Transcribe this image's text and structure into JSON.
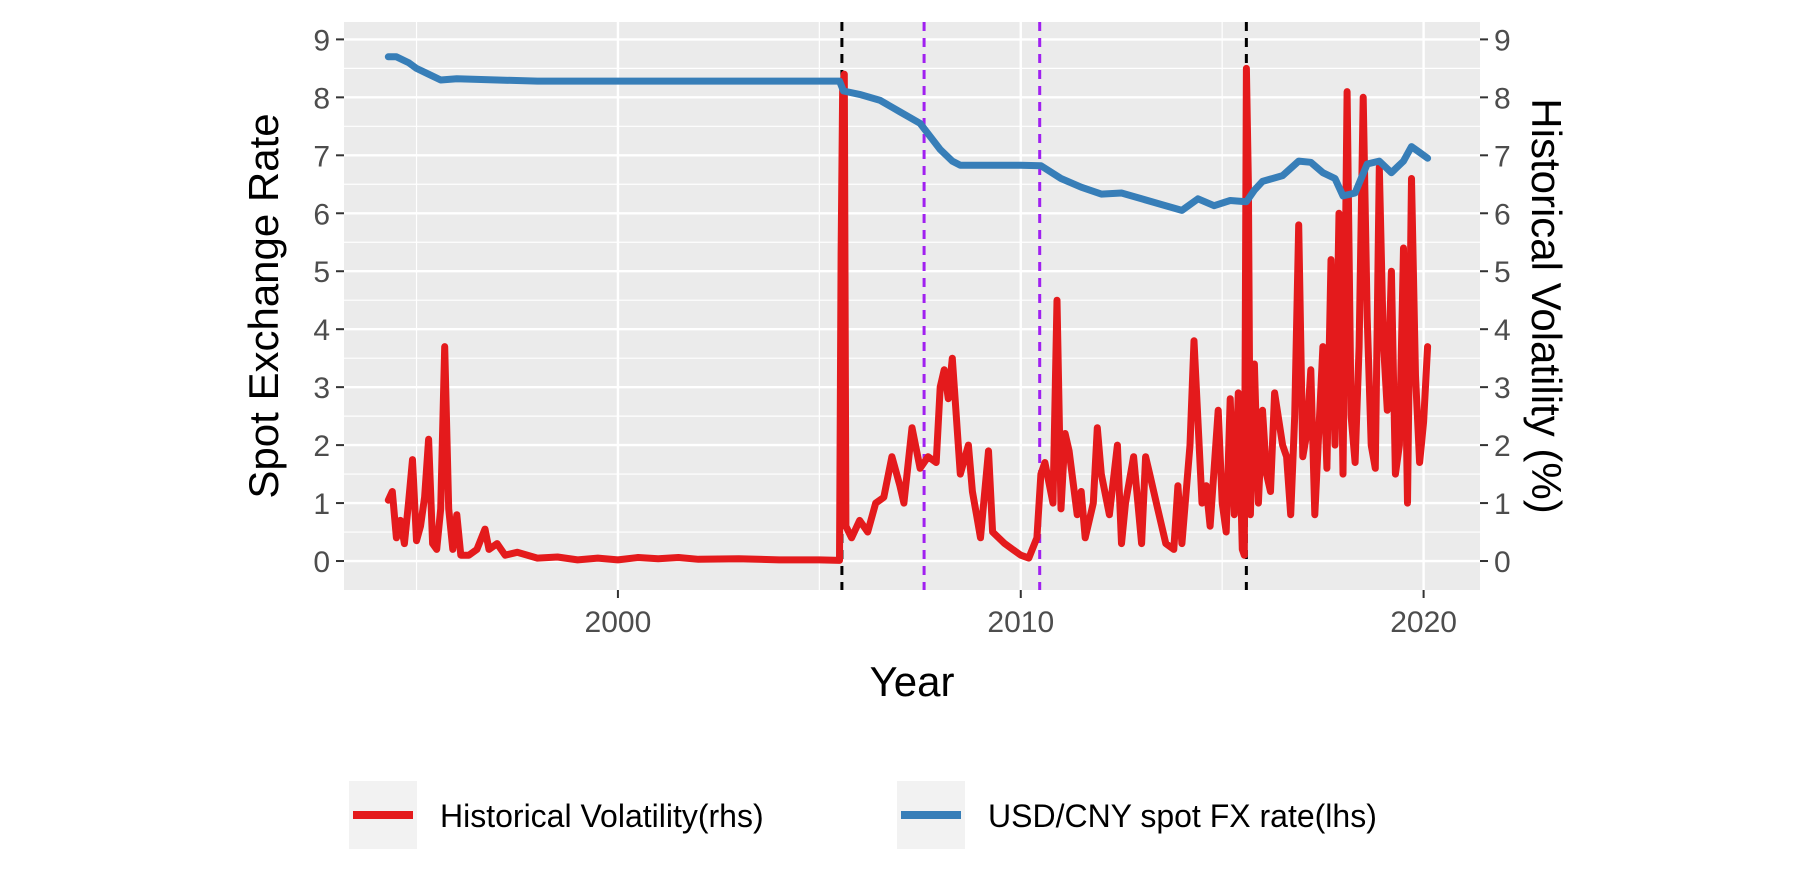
{
  "chart_data": {
    "type": "line",
    "xlabel": "Year",
    "ylabel_left": "Spot Exchange Rate",
    "ylabel_right": "Historical Volatility (%)",
    "xlim": [
      1993.2,
      2021.4
    ],
    "ylim": [
      -0.5,
      9.3
    ],
    "x_ticks": [
      2000,
      2010,
      2020
    ],
    "y_ticks": [
      0,
      1,
      2,
      3,
      4,
      5,
      6,
      7,
      8,
      9
    ],
    "grid": true,
    "legend_position": "bottom",
    "colors": {
      "panel": "#ebebeb",
      "grid": "#ffffff",
      "volatility": "#e41a1c",
      "fx": "#377eb8",
      "event_black": "#000000",
      "event_purple": "#a020f0"
    },
    "vlines": [
      {
        "x": 2005.56,
        "style": "dashed",
        "color": "black"
      },
      {
        "x": 2007.6,
        "style": "dashed",
        "color": "purple"
      },
      {
        "x": 2010.47,
        "style": "dashed",
        "color": "purple"
      },
      {
        "x": 2015.6,
        "style": "dashed",
        "color": "black"
      }
    ],
    "series": [
      {
        "name": "Historical Volatility(rhs)",
        "axis": "right",
        "color": "#e41a1c",
        "points": [
          [
            1994.3,
            1.05
          ],
          [
            1994.4,
            1.2
          ],
          [
            1994.5,
            0.4
          ],
          [
            1994.6,
            0.7
          ],
          [
            1994.7,
            0.3
          ],
          [
            1994.8,
            1.0
          ],
          [
            1994.9,
            1.75
          ],
          [
            1995.0,
            0.35
          ],
          [
            1995.1,
            0.6
          ],
          [
            1995.2,
            1.1
          ],
          [
            1995.3,
            2.1
          ],
          [
            1995.4,
            0.3
          ],
          [
            1995.5,
            0.2
          ],
          [
            1995.6,
            0.9
          ],
          [
            1995.7,
            3.7
          ],
          [
            1995.8,
            0.9
          ],
          [
            1995.9,
            0.2
          ],
          [
            1996.0,
            0.8
          ],
          [
            1996.1,
            0.1
          ],
          [
            1996.3,
            0.1
          ],
          [
            1996.5,
            0.2
          ],
          [
            1996.7,
            0.55
          ],
          [
            1996.8,
            0.2
          ],
          [
            1997.0,
            0.3
          ],
          [
            1997.2,
            0.1
          ],
          [
            1997.5,
            0.15
          ],
          [
            1998.0,
            0.05
          ],
          [
            1998.5,
            0.07
          ],
          [
            1999.0,
            0.02
          ],
          [
            1999.5,
            0.05
          ],
          [
            2000.0,
            0.02
          ],
          [
            2000.5,
            0.06
          ],
          [
            2001.0,
            0.04
          ],
          [
            2001.5,
            0.06
          ],
          [
            2002.0,
            0.03
          ],
          [
            2003.0,
            0.04
          ],
          [
            2004.0,
            0.02
          ],
          [
            2005.0,
            0.02
          ],
          [
            2005.5,
            0.01
          ],
          [
            2005.54,
            5.3
          ],
          [
            2005.58,
            8.2
          ],
          [
            2005.62,
            8.4
          ],
          [
            2005.66,
            0.6
          ],
          [
            2005.8,
            0.4
          ],
          [
            2006.0,
            0.7
          ],
          [
            2006.2,
            0.5
          ],
          [
            2006.4,
            1.0
          ],
          [
            2006.6,
            1.1
          ],
          [
            2006.8,
            1.8
          ],
          [
            2007.0,
            1.3
          ],
          [
            2007.1,
            1.0
          ],
          [
            2007.3,
            2.3
          ],
          [
            2007.5,
            1.6
          ],
          [
            2007.7,
            1.8
          ],
          [
            2007.9,
            1.7
          ],
          [
            2008.0,
            3.0
          ],
          [
            2008.1,
            3.3
          ],
          [
            2008.2,
            2.8
          ],
          [
            2008.3,
            3.5
          ],
          [
            2008.5,
            1.5
          ],
          [
            2008.7,
            2.0
          ],
          [
            2008.8,
            1.2
          ],
          [
            2008.9,
            0.8
          ],
          [
            2009.0,
            0.4
          ],
          [
            2009.2,
            1.9
          ],
          [
            2009.3,
            0.5
          ],
          [
            2009.6,
            0.3
          ],
          [
            2009.8,
            0.2
          ],
          [
            2010.0,
            0.1
          ],
          [
            2010.2,
            0.05
          ],
          [
            2010.4,
            0.4
          ],
          [
            2010.5,
            1.5
          ],
          [
            2010.6,
            1.7
          ],
          [
            2010.8,
            1.0
          ],
          [
            2010.9,
            4.5
          ],
          [
            2011.0,
            0.9
          ],
          [
            2011.1,
            2.2
          ],
          [
            2011.2,
            1.9
          ],
          [
            2011.4,
            0.8
          ],
          [
            2011.5,
            1.2
          ],
          [
            2011.6,
            0.4
          ],
          [
            2011.8,
            1.0
          ],
          [
            2011.9,
            2.3
          ],
          [
            2012.0,
            1.5
          ],
          [
            2012.2,
            0.8
          ],
          [
            2012.4,
            2.0
          ],
          [
            2012.5,
            0.3
          ],
          [
            2012.6,
            1.0
          ],
          [
            2012.8,
            1.8
          ],
          [
            2013.0,
            0.3
          ],
          [
            2013.1,
            1.8
          ],
          [
            2013.2,
            1.5
          ],
          [
            2013.4,
            0.9
          ],
          [
            2013.6,
            0.3
          ],
          [
            2013.8,
            0.2
          ],
          [
            2013.9,
            1.3
          ],
          [
            2014.0,
            0.3
          ],
          [
            2014.2,
            2.0
          ],
          [
            2014.3,
            3.8
          ],
          [
            2014.5,
            1.0
          ],
          [
            2014.6,
            1.3
          ],
          [
            2014.7,
            0.6
          ],
          [
            2014.9,
            2.6
          ],
          [
            2015.0,
            1.0
          ],
          [
            2015.1,
            0.5
          ],
          [
            2015.2,
            2.8
          ],
          [
            2015.3,
            0.8
          ],
          [
            2015.4,
            2.9
          ],
          [
            2015.5,
            0.2
          ],
          [
            2015.55,
            0.1
          ],
          [
            2015.6,
            8.5
          ],
          [
            2015.65,
            6.5
          ],
          [
            2015.7,
            0.8
          ],
          [
            2015.8,
            3.4
          ],
          [
            2015.9,
            1.0
          ],
          [
            2016.0,
            2.6
          ],
          [
            2016.1,
            1.5
          ],
          [
            2016.2,
            1.2
          ],
          [
            2016.3,
            2.9
          ],
          [
            2016.5,
            2.0
          ],
          [
            2016.6,
            1.8
          ],
          [
            2016.7,
            0.8
          ],
          [
            2016.8,
            2.5
          ],
          [
            2016.9,
            5.8
          ],
          [
            2017.0,
            1.8
          ],
          [
            2017.1,
            2.2
          ],
          [
            2017.2,
            3.3
          ],
          [
            2017.3,
            0.8
          ],
          [
            2017.5,
            3.7
          ],
          [
            2017.6,
            1.6
          ],
          [
            2017.7,
            5.2
          ],
          [
            2017.8,
            2.0
          ],
          [
            2017.9,
            6.0
          ],
          [
            2018.0,
            1.5
          ],
          [
            2018.1,
            8.1
          ],
          [
            2018.2,
            2.5
          ],
          [
            2018.3,
            1.7
          ],
          [
            2018.4,
            3.7
          ],
          [
            2018.5,
            8.0
          ],
          [
            2018.6,
            4.2
          ],
          [
            2018.7,
            2.0
          ],
          [
            2018.8,
            1.6
          ],
          [
            2018.9,
            6.8
          ],
          [
            2019.0,
            3.8
          ],
          [
            2019.1,
            2.6
          ],
          [
            2019.2,
            5.0
          ],
          [
            2019.3,
            1.5
          ],
          [
            2019.4,
            2.0
          ],
          [
            2019.5,
            5.4
          ],
          [
            2019.6,
            1.0
          ],
          [
            2019.7,
            6.6
          ],
          [
            2019.8,
            3.2
          ],
          [
            2019.9,
            1.7
          ],
          [
            2020.0,
            2.4
          ],
          [
            2020.1,
            3.7
          ]
        ]
      },
      {
        "name": "USD/CNY spot FX rate(lhs)",
        "axis": "left",
        "color": "#377eb8",
        "points": [
          [
            1994.3,
            8.7
          ],
          [
            1994.5,
            8.7
          ],
          [
            1994.8,
            8.6
          ],
          [
            1995.0,
            8.5
          ],
          [
            1995.3,
            8.4
          ],
          [
            1995.6,
            8.3
          ],
          [
            1996.0,
            8.32
          ],
          [
            1997.0,
            8.3
          ],
          [
            1998.0,
            8.28
          ],
          [
            2000.0,
            8.28
          ],
          [
            2003.0,
            8.28
          ],
          [
            2005.5,
            8.28
          ],
          [
            2005.6,
            8.11
          ],
          [
            2006.0,
            8.05
          ],
          [
            2006.5,
            7.95
          ],
          [
            2007.0,
            7.75
          ],
          [
            2007.5,
            7.55
          ],
          [
            2008.0,
            7.1
          ],
          [
            2008.3,
            6.9
          ],
          [
            2008.5,
            6.83
          ],
          [
            2009.0,
            6.83
          ],
          [
            2010.0,
            6.83
          ],
          [
            2010.5,
            6.82
          ],
          [
            2011.0,
            6.6
          ],
          [
            2011.5,
            6.45
          ],
          [
            2012.0,
            6.33
          ],
          [
            2012.5,
            6.35
          ],
          [
            2013.0,
            6.25
          ],
          [
            2013.5,
            6.15
          ],
          [
            2014.0,
            6.05
          ],
          [
            2014.4,
            6.25
          ],
          [
            2014.8,
            6.13
          ],
          [
            2015.2,
            6.22
          ],
          [
            2015.6,
            6.2
          ],
          [
            2015.8,
            6.4
          ],
          [
            2016.0,
            6.55
          ],
          [
            2016.5,
            6.65
          ],
          [
            2016.9,
            6.9
          ],
          [
            2017.2,
            6.88
          ],
          [
            2017.5,
            6.7
          ],
          [
            2017.8,
            6.6
          ],
          [
            2018.0,
            6.3
          ],
          [
            2018.3,
            6.35
          ],
          [
            2018.6,
            6.85
          ],
          [
            2018.9,
            6.9
          ],
          [
            2019.2,
            6.7
          ],
          [
            2019.5,
            6.9
          ],
          [
            2019.7,
            7.15
          ],
          [
            2019.9,
            7.05
          ],
          [
            2020.1,
            6.95
          ]
        ]
      }
    ]
  }
}
